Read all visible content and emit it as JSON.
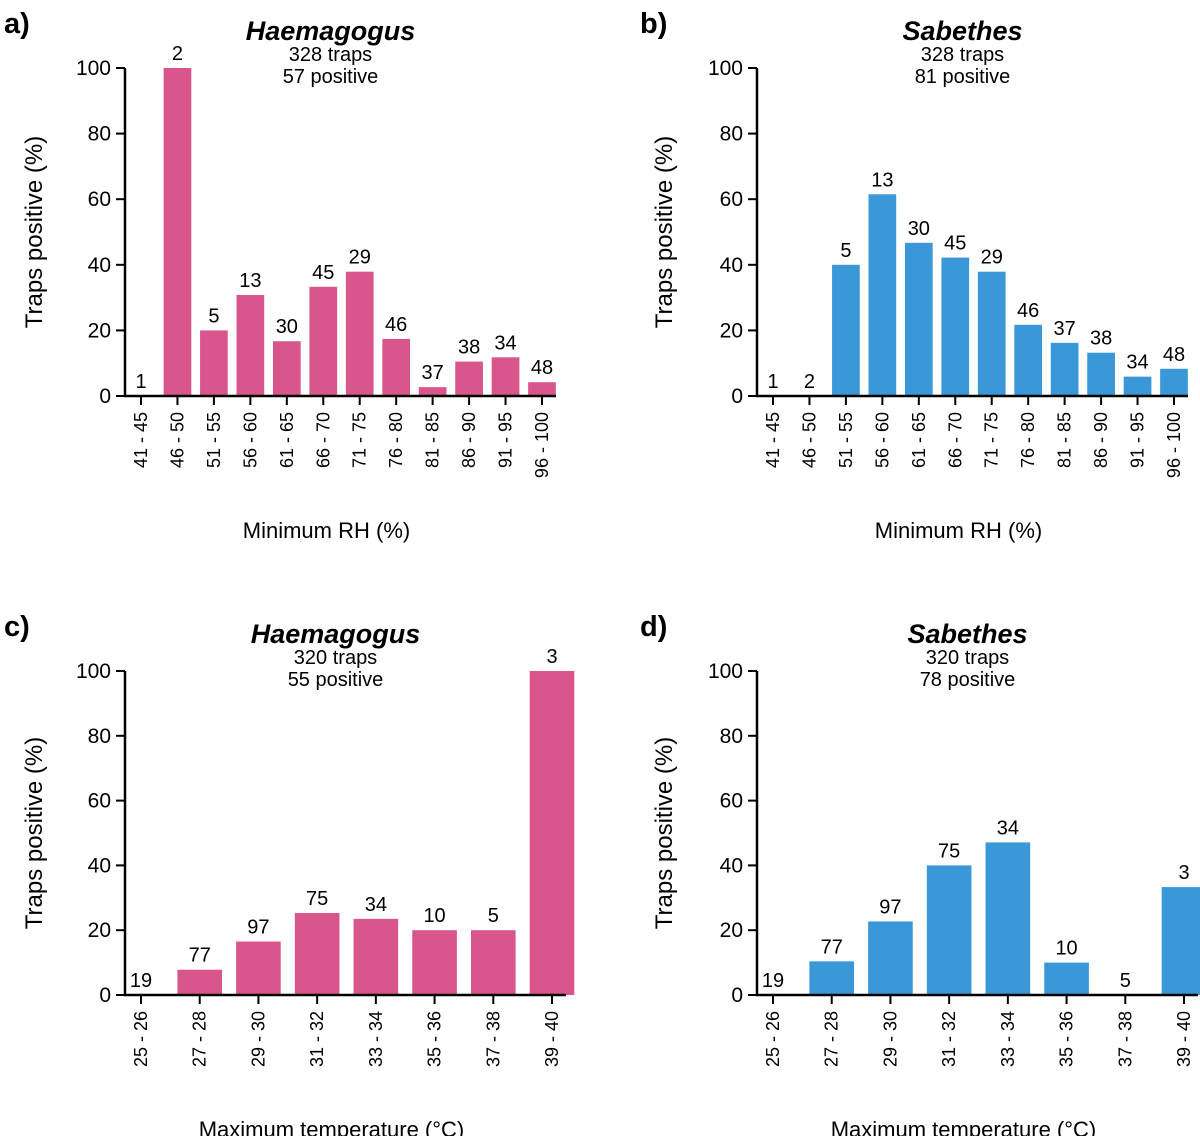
{
  "colors": {
    "haemagogus": "#d9568c",
    "sabethes": "#3a98d8",
    "axis": "#000000"
  },
  "chart_data": [
    {
      "type": "bar",
      "panel": "a)",
      "title": "Haemagogus",
      "note_lines": [
        "328 traps",
        "57 positive"
      ],
      "categories": [
        "41 - 45",
        "46 - 50",
        "51 - 55",
        "56 - 60",
        "61 - 65",
        "66 - 70",
        "71 - 75",
        "76 - 80",
        "81 - 85",
        "86 - 90",
        "91 - 95",
        "96 - 100"
      ],
      "values": [
        0,
        100,
        20,
        30.8,
        16.7,
        33.3,
        37.9,
        17.4,
        2.7,
        10.5,
        11.8,
        4.2
      ],
      "data_labels": [
        "1",
        "2",
        "5",
        "13",
        "30",
        "45",
        "29",
        "46",
        "37",
        "38",
        "34",
        "48"
      ],
      "xlabel": "Minimum RH (%)",
      "ylabel": "Traps positive (%)",
      "ylim": [
        0,
        100
      ],
      "yticks": [
        0,
        20,
        40,
        60,
        80,
        100
      ],
      "color": "haemagogus"
    },
    {
      "type": "bar",
      "panel": "b)",
      "title": "Sabethes",
      "note_lines": [
        "328 traps",
        "81 positive"
      ],
      "categories": [
        "41 - 45",
        "46 - 50",
        "51 - 55",
        "56 - 60",
        "61 - 65",
        "66 - 70",
        "71 - 75",
        "76 - 80",
        "81 - 85",
        "86 - 90",
        "91 - 95",
        "96 - 100"
      ],
      "values": [
        0,
        0,
        40,
        61.5,
        46.7,
        42.2,
        37.9,
        21.7,
        16.2,
        13.2,
        5.9,
        8.3
      ],
      "data_labels": [
        "1",
        "2",
        "5",
        "13",
        "30",
        "45",
        "29",
        "46",
        "37",
        "38",
        "34",
        "48"
      ],
      "xlabel": "Minimum RH (%)",
      "ylabel": "Traps positive (%)",
      "ylim": [
        0,
        100
      ],
      "yticks": [
        0,
        20,
        40,
        60,
        80,
        100
      ],
      "color": "sabethes"
    },
    {
      "type": "bar",
      "panel": "c)",
      "title": "Haemagogus",
      "note_lines": [
        "320 traps",
        "55 positive"
      ],
      "categories": [
        "25 - 26",
        "27 - 28",
        "29 - 30",
        "31 - 32",
        "33 - 34",
        "35 - 36",
        "37 - 38",
        "39 - 40"
      ],
      "values": [
        0,
        7.8,
        16.5,
        25.3,
        23.5,
        20,
        20,
        100
      ],
      "data_labels": [
        "19",
        "77",
        "97",
        "75",
        "34",
        "10",
        "5",
        "3"
      ],
      "xlabel": "Maximum temperature (°C)",
      "ylabel": "Traps positive (%)",
      "ylim": [
        0,
        100
      ],
      "yticks": [
        0,
        20,
        40,
        60,
        80,
        100
      ],
      "color": "haemagogus"
    },
    {
      "type": "bar",
      "panel": "d)",
      "title": "Sabethes",
      "note_lines": [
        "320 traps",
        "78 positive"
      ],
      "categories": [
        "25 - 26",
        "27 - 28",
        "29 - 30",
        "31 - 32",
        "33 - 34",
        "35 - 36",
        "37 - 38",
        "39 - 40"
      ],
      "values": [
        0,
        10.4,
        22.7,
        40,
        47.1,
        10,
        0,
        33.3
      ],
      "data_labels": [
        "19",
        "77",
        "97",
        "75",
        "34",
        "10",
        "5",
        "3"
      ],
      "xlabel": "Maximum temperature (°C)",
      "ylabel": "Traps positive (%)",
      "ylim": [
        0,
        100
      ],
      "yticks": [
        0,
        20,
        40,
        60,
        80,
        100
      ],
      "color": "sabethes"
    }
  ]
}
